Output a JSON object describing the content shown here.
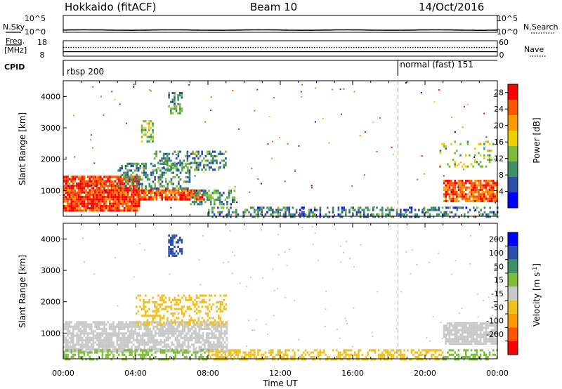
{
  "header": {
    "station": "Hokkaido (fitACF)",
    "beam": "Beam 10",
    "date": "14/Oct/2016"
  },
  "chart_data": [
    {
      "type": "line",
      "panel": "noise",
      "left_label": "N.Sky",
      "right_label": "N.Search",
      "left_ticks": [
        "10^5",
        "10^0"
      ],
      "right_ticks": [
        "10^5",
        "10^0"
      ],
      "scale": "log",
      "ylim": [
        1,
        100000
      ],
      "series": [
        {
          "name": "N.Sky",
          "style": "solid",
          "approx_level": 1.8
        },
        {
          "name": "N.Search",
          "style": "dotted",
          "approx_level": 1.0
        }
      ]
    },
    {
      "type": "line",
      "panel": "frequency",
      "left_label": "Freq.",
      "left_unit": "[MHz]",
      "right_label": "Nave",
      "left_ticks": [
        "18",
        "8"
      ],
      "right_ticks": [
        "60",
        "0"
      ],
      "series": [
        {
          "name": "Freq.",
          "style": "solid",
          "approx_value_mhz": 10.9
        },
        {
          "name": "Nave",
          "style": "dotted",
          "approx_value": 34
        }
      ]
    },
    {
      "type": "line",
      "panel": "cpid",
      "left_label": "CPID",
      "segments": [
        {
          "start_hour": 0.0,
          "label": "rbsp 200"
        },
        {
          "start_hour": 18.5,
          "label": "normal (fast) 151"
        }
      ]
    },
    {
      "type": "heatmap",
      "panel": "power",
      "ylabel": "Slant Range [km]",
      "xlabel": "Time UT",
      "x_ticks": [
        "00:00",
        "04:00",
        "08:00",
        "12:00",
        "16:00",
        "20:00",
        "00:00"
      ],
      "xlim_hours": [
        0,
        24
      ],
      "y_ticks": [
        1000,
        2000,
        3000,
        4000
      ],
      "ylim_km": [
        180,
        4500
      ],
      "colorbar": {
        "label": "Power [dB]",
        "ticks": [
          4,
          8,
          12,
          16,
          20,
          24,
          28
        ],
        "range": [
          0,
          30
        ],
        "colors": [
          "#0000ff",
          "#2b4fa8",
          "#3f8f66",
          "#7dbd3a",
          "#f0d000",
          "#ff9900",
          "#ff5500",
          "#ff0000"
        ]
      },
      "regions": [
        {
          "t": [
            0.0,
            4.2
          ],
          "r": [
            400,
            1500
          ],
          "value": 26,
          "density": 0.9
        },
        {
          "t": [
            4.2,
            7.8
          ],
          "r": [
            750,
            1100
          ],
          "value": 25,
          "density": 0.85
        },
        {
          "t": [
            3.0,
            7.0
          ],
          "r": [
            1100,
            1900
          ],
          "value": 9,
          "density": 0.45
        },
        {
          "t": [
            7.0,
            9.5
          ],
          "r": [
            600,
            1100
          ],
          "value": 10,
          "density": 0.55
        },
        {
          "t": [
            5.0,
            9.0
          ],
          "r": [
            1700,
            2300
          ],
          "value": 9,
          "density": 0.4
        },
        {
          "t": [
            4.3,
            5.0
          ],
          "r": [
            2600,
            3300
          ],
          "value": 14,
          "density": 0.5
        },
        {
          "t": [
            5.8,
            6.6
          ],
          "r": [
            3500,
            4200
          ],
          "value": 10,
          "density": 0.55
        },
        {
          "t": [
            8.0,
            24.0
          ],
          "r": [
            200,
            550
          ],
          "value": 8,
          "density": 0.4
        },
        {
          "t": [
            21.0,
            24.0
          ],
          "r": [
            700,
            1400
          ],
          "value": 24,
          "density": 0.85
        },
        {
          "t": [
            20.8,
            24.0
          ],
          "r": [
            1800,
            2600
          ],
          "value": 14,
          "density": 0.15
        }
      ]
    },
    {
      "type": "heatmap",
      "panel": "velocity",
      "ylabel": "Slant Range [km]",
      "xlabel": "Time UT",
      "x_ticks": [
        "00:00",
        "04:00",
        "08:00",
        "12:00",
        "16:00",
        "20:00",
        "00:00"
      ],
      "xlim_hours": [
        0,
        24
      ],
      "y_ticks": [
        1000,
        2000,
        3000,
        4000
      ],
      "ylim_km": [
        180,
        4500
      ],
      "colorbar": {
        "label_prefix": "Velocity [m s",
        "label_exp": "-1",
        "label_suffix": "]",
        "ticks": [
          "200",
          "100",
          "50",
          "15",
          "-15",
          "-50",
          "-100",
          "-200"
        ],
        "colors": [
          "#0000ff",
          "#2b4fa8",
          "#3f8f66",
          "#7dbd3a",
          "#c8c8c8",
          "#f0c020",
          "#ff9900",
          "#ff5500",
          "#ff0000"
        ]
      },
      "regions": [
        {
          "t": [
            0.0,
            9.0
          ],
          "r": [
            450,
            1450
          ],
          "value": 0,
          "density": 0.75
        },
        {
          "t": [
            4.0,
            9.0
          ],
          "r": [
            1300,
            2300
          ],
          "value": -30,
          "density": 0.35
        },
        {
          "t": [
            5.8,
            6.6
          ],
          "r": [
            3500,
            4200
          ],
          "value": 180,
          "density": 0.6
        },
        {
          "t": [
            0.0,
            8.0
          ],
          "r": [
            200,
            500
          ],
          "value": 30,
          "density": 0.45
        },
        {
          "t": [
            8.0,
            21.0
          ],
          "r": [
            200,
            550
          ],
          "value": -30,
          "density": 0.5
        },
        {
          "t": [
            21.0,
            24.0
          ],
          "r": [
            700,
            1400
          ],
          "value": 0,
          "density": 0.85
        },
        {
          "t": [
            21.0,
            24.0
          ],
          "r": [
            200,
            500
          ],
          "value": 30,
          "density": 0.45
        }
      ]
    }
  ]
}
